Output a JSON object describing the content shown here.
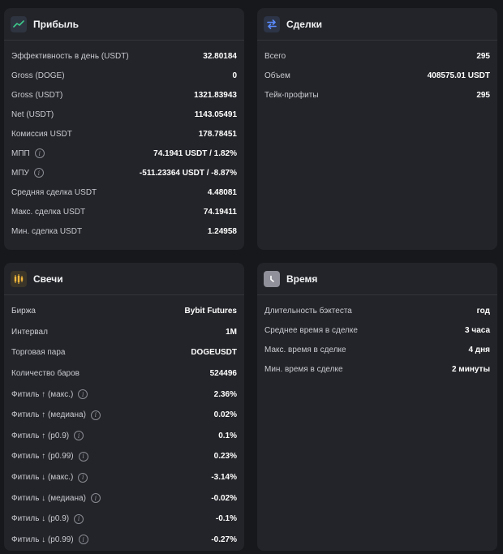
{
  "profit": {
    "title": "Прибыль",
    "icon": "trend-line-icon",
    "rows": [
      {
        "label": "Эффективность в день (USDT)",
        "value": "32.80184",
        "info": false
      },
      {
        "label": "Gross (DOGE)",
        "value": "0",
        "info": false
      },
      {
        "label": "Gross (USDT)",
        "value": "1321.83943",
        "info": false
      },
      {
        "label": "Net (USDT)",
        "value": "1143.05491",
        "info": false
      },
      {
        "label": "Комиссия USDT",
        "value": "178.78451",
        "info": false
      },
      {
        "label": "МПП",
        "value": "74.1941 USDT / 1.82%",
        "info": true
      },
      {
        "label": "МПУ",
        "value": "-511.23364 USDT / -8.87%",
        "info": true
      },
      {
        "label": "Средняя сделка USDT",
        "value": "4.48081",
        "info": false
      },
      {
        "label": "Макс. сделка USDT",
        "value": "74.19411",
        "info": false
      },
      {
        "label": "Мин. сделка USDT",
        "value": "1.24958",
        "info": false
      }
    ]
  },
  "deals": {
    "title": "Сделки",
    "icon": "exchange-arrows-icon",
    "rows": [
      {
        "label": "Всего",
        "value": "295"
      },
      {
        "label": "Объем",
        "value": "408575.01 USDT"
      },
      {
        "label": "Тейк-профиты",
        "value": "295"
      }
    ]
  },
  "candles": {
    "title": "Свечи",
    "icon": "candlestick-icon",
    "rows": [
      {
        "label": "Биржа",
        "value": "Bybit Futures",
        "info": false
      },
      {
        "label": "Интервал",
        "value": "1M",
        "info": false
      },
      {
        "label": "Торговая пара",
        "value": "DOGEUSDT",
        "info": false
      },
      {
        "label": "Количество баров",
        "value": "524496",
        "info": false
      },
      {
        "label": "Фитиль ↑ (макс.)",
        "value": "2.36%",
        "info": true
      },
      {
        "label": "Фитиль ↑ (медиана)",
        "value": "0.02%",
        "info": true
      },
      {
        "label": "Фитиль ↑ (p0.9)",
        "value": "0.1%",
        "info": true
      },
      {
        "label": "Фитиль ↑ (p0.99)",
        "value": "0.23%",
        "info": true
      },
      {
        "label": "Фитиль ↓ (макс.)",
        "value": "-3.14%",
        "info": true
      },
      {
        "label": "Фитиль ↓ (медиана)",
        "value": "-0.02%",
        "info": true
      },
      {
        "label": "Фитиль ↓ (p0.9)",
        "value": "-0.1%",
        "info": true
      },
      {
        "label": "Фитиль ↓ (p0.99)",
        "value": "-0.27%",
        "info": true
      }
    ]
  },
  "time": {
    "title": "Время",
    "icon": "clock-icon",
    "rows": [
      {
        "label": "Длительность бэктеста",
        "value": "год"
      },
      {
        "label": "Среднее время в сделке",
        "value": "3 часа"
      },
      {
        "label": "Макс. время в сделке",
        "value": "4 дня"
      },
      {
        "label": "Мин. время в сделке",
        "value": "2 минуты"
      }
    ]
  },
  "info_glyph": "i",
  "colors": {
    "background": "#17181c",
    "card": "#232429",
    "profit_icon": "#3ec98a",
    "deals_icon": "#5b8cff",
    "candles_icon": "#f5b73b"
  }
}
